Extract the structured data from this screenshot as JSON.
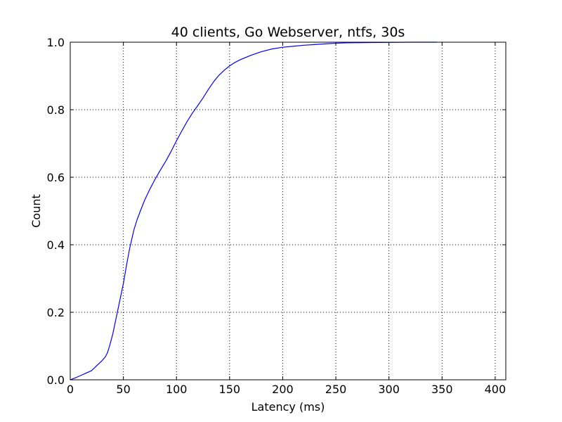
{
  "chart_data": {
    "type": "line",
    "title": "40 clients, Go Webserver, ntfs, 30s",
    "xlabel": "Latency (ms)",
    "ylabel": "Count",
    "xlim": [
      0,
      410
    ],
    "ylim": [
      0,
      1.0
    ],
    "x_ticks": [
      0,
      50,
      100,
      150,
      200,
      250,
      300,
      350,
      400
    ],
    "x_tick_labels": [
      "0",
      "50",
      "100",
      "150",
      "200",
      "250",
      "300",
      "350",
      "400"
    ],
    "y_ticks": [
      0,
      0.2,
      0.4,
      0.6,
      0.8,
      1.0
    ],
    "y_tick_labels": [
      "0.0",
      "0.2",
      "0.4",
      "0.6",
      "0.8",
      "1.0"
    ],
    "grid": true,
    "series": [
      {
        "color": "#0000ff",
        "x": [
          0,
          5,
          10,
          15,
          20,
          25,
          30,
          33,
          35,
          37,
          40,
          43,
          46,
          50,
          53,
          56,
          60,
          63,
          66,
          70,
          75,
          80,
          85,
          90,
          95,
          100,
          105,
          110,
          115,
          120,
          125,
          130,
          135,
          140,
          145,
          150,
          155,
          160,
          170,
          180,
          190,
          200,
          210,
          220,
          230,
          240,
          250,
          260,
          280,
          300,
          320,
          345
        ],
        "y": [
          0,
          0.006,
          0.013,
          0.02,
          0.027,
          0.042,
          0.057,
          0.068,
          0.08,
          0.1,
          0.135,
          0.18,
          0.225,
          0.285,
          0.34,
          0.39,
          0.445,
          0.475,
          0.5,
          0.532,
          0.565,
          0.595,
          0.622,
          0.648,
          0.677,
          0.708,
          0.737,
          0.765,
          0.79,
          0.812,
          0.835,
          0.86,
          0.883,
          0.902,
          0.917,
          0.93,
          0.94,
          0.948,
          0.961,
          0.972,
          0.98,
          0.985,
          0.988,
          0.991,
          0.993,
          0.995,
          0.997,
          0.998,
          0.999,
          0.9995,
          1.0,
          1.0
        ]
      }
    ]
  }
}
